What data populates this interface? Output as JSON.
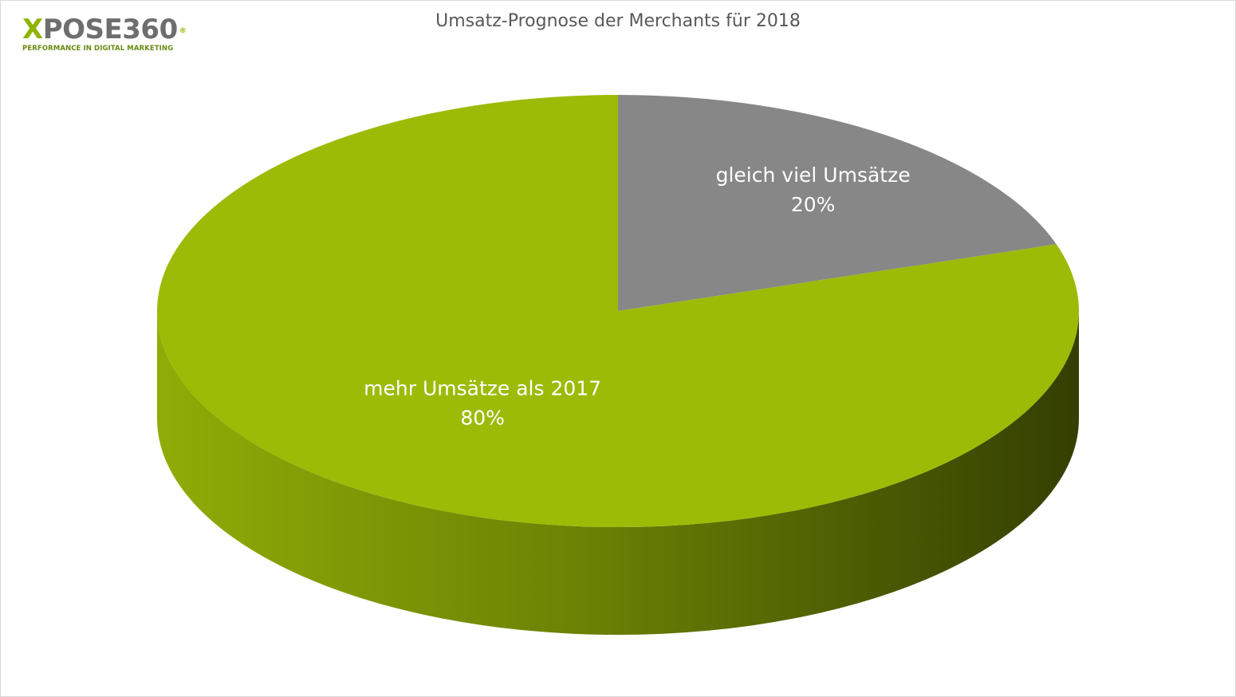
{
  "logo": {
    "prefix": "X",
    "name": "POSE360",
    "registered": "®",
    "tagline": "PERFORMANCE IN DIGITAL MARKETING"
  },
  "chart_data": {
    "type": "pie",
    "title": "Umsatz-Prognose  der Merchants für 2018",
    "style": "3d",
    "legend": "none",
    "slices": [
      {
        "label": "gleich viel Umsätze",
        "value": 20,
        "value_label": "20%",
        "color": "#878787"
      },
      {
        "label": "mehr Umsätze als 2017",
        "value": 80,
        "value_label": "80%",
        "color": "#9bbb07"
      }
    ]
  },
  "colors": {
    "green_top": "#9bbb07",
    "green_side_light": "#88a506",
    "green_side_dark": "#3a4a02",
    "grey_top": "#878787"
  }
}
